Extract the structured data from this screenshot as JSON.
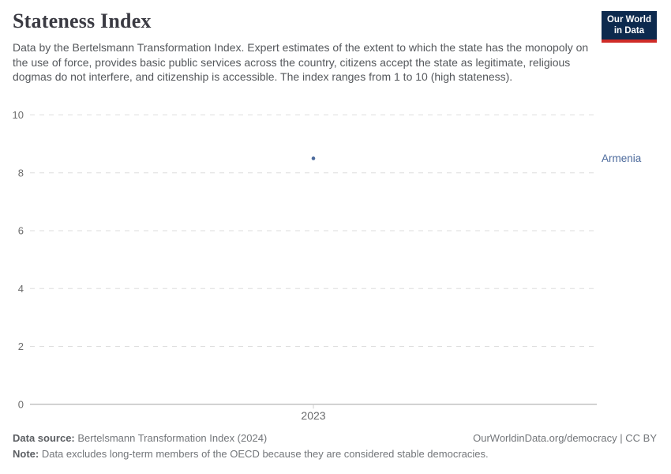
{
  "header": {
    "title": "Stateness Index",
    "subtitle": "Data by the Bertelsmann Transformation Index. Expert estimates of the extent to which the state has the monopoly on the use of force, provides basic public services across the country, citizens accept the state as legitimate, religious dogmas do not interfere, and citizenship is accessible. The index ranges from 1 to 10 (high stateness).",
    "logo": {
      "line1": "Our World",
      "line2": "in Data",
      "bg_color": "#0d2a4e",
      "bar_color": "#cf2b27"
    }
  },
  "chart_data": {
    "type": "scatter",
    "title": "Stateness Index",
    "series": [
      {
        "name": "Armenia",
        "color": "#4c6a9c",
        "x": [
          2023
        ],
        "values": [
          8.5
        ]
      }
    ],
    "entity_label": "Armenia",
    "x_ticks": [
      2023
    ],
    "y_ticks": [
      0,
      2,
      4,
      6,
      8,
      10
    ],
    "ylim": [
      0,
      10
    ],
    "xlabel": "",
    "ylabel": "",
    "grid": "horizontal-dashed",
    "axis_color": "#a3a3a3",
    "gridline_color": "#dedede",
    "tick_label_color": "#6d6d6d"
  },
  "footer": {
    "source_label": "Data source:",
    "source_text": " Bertelsmann Transformation Index (2024)",
    "license": "OurWorldinData.org/democracy | CC BY",
    "note_label": "Note:",
    "note_text": " Data excludes long-term members of the OECD because they are considered stable democracies."
  }
}
